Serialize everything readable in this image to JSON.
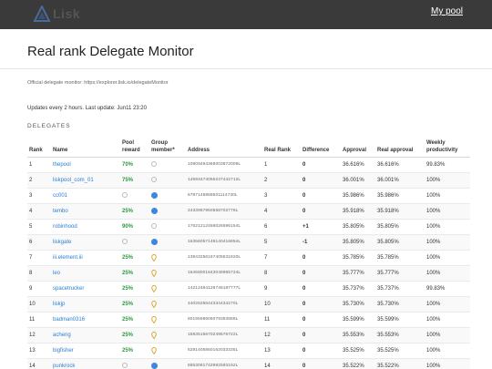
{
  "header": {
    "logo_text": "Lisk",
    "nav_label": "My pool"
  },
  "page": {
    "title": "Real rank Delegate Monitor",
    "monitor_note": "Official delegate monitor: https://explorer.lisk.io/delegateMonitor",
    "update_note": "Updates every 2 hours. Last update: Jun11 23:20",
    "section_title": "DELEGATES"
  },
  "table": {
    "headers": {
      "rank": "Rank",
      "name": "Name",
      "pool_reward": "Pool reward",
      "group_member": "Group member*",
      "address": "Address",
      "real_rank": "Real Rank",
      "difference": "Difference",
      "approval": "Approval",
      "real_approval": "Real approval",
      "weekly_productivity": "Weekly productivity"
    },
    "rows": [
      {
        "rank": "1",
        "name": "thepool",
        "pool": "70%",
        "member": "circle",
        "address": "10809494368003872009L",
        "real_rank": "1",
        "diff": "0",
        "approval": "36.616%",
        "real_approval": "36.616%",
        "productivity": "99.83%"
      },
      {
        "rank": "2",
        "name": "liskpool_com_01",
        "pool": "75%",
        "member": "circle",
        "address": "14593474056247442712L",
        "real_rank": "2",
        "diff": "0",
        "approval": "36.001%",
        "real_approval": "36.001%",
        "productivity": "100%"
      },
      {
        "rank": "3",
        "name": "cc001",
        "pool": "",
        "member": "dot",
        "address": "6787145958501114730L",
        "real_rank": "3",
        "diff": "0",
        "approval": "35.986%",
        "real_approval": "35.986%",
        "productivity": "100%"
      },
      {
        "rank": "4",
        "name": "tembo",
        "pool": "25%",
        "member": "dot",
        "address": "2433957950558702776L",
        "real_rank": "4",
        "diff": "0",
        "approval": "35.918%",
        "real_approval": "35.918%",
        "productivity": "100%"
      },
      {
        "rank": "5",
        "name": "robinhood",
        "pool": "90%",
        "member": "circle",
        "address": "17621212458026596154L",
        "real_rank": "6",
        "diff": "+1",
        "approval": "35.805%",
        "real_approval": "35.805%",
        "productivity": "100%"
      },
      {
        "rank": "6",
        "name": "liskgate",
        "pool": "",
        "member": "dot",
        "address": "16356057149140416854L",
        "real_rank": "5",
        "diff": "-1",
        "approval": "35.805%",
        "real_approval": "35.805%",
        "productivity": "100%"
      },
      {
        "rank": "7",
        "name": "iii.element.iii",
        "pool": "25%",
        "member": "pin",
        "address": "13943256167405531820L",
        "real_rank": "7",
        "diff": "0",
        "approval": "35.785%",
        "real_approval": "35.785%",
        "productivity": "100%"
      },
      {
        "rank": "8",
        "name": "leo",
        "pool": "25%",
        "member": "pin",
        "address": "15458001843048965724L",
        "real_rank": "8",
        "diff": "0",
        "approval": "35.777%",
        "real_approval": "35.777%",
        "productivity": "100%"
      },
      {
        "rank": "9",
        "name": "spacetrucker",
        "pool": "25%",
        "member": "pin",
        "address": "14212484126746187777L",
        "real_rank": "9",
        "diff": "0",
        "approval": "35.737%",
        "real_approval": "35.737%",
        "productivity": "99.83%"
      },
      {
        "rank": "10",
        "name": "liskjp",
        "pool": "25%",
        "member": "pin",
        "address": "4402625644334434270L",
        "real_rank": "10",
        "diff": "0",
        "approval": "35.730%",
        "real_approval": "35.730%",
        "productivity": "100%"
      },
      {
        "rank": "11",
        "name": "badman0316",
        "pool": "25%",
        "member": "pin",
        "address": "8019598606079393888L",
        "real_rank": "11",
        "diff": "0",
        "approval": "35.599%",
        "real_approval": "35.599%",
        "productivity": "100%"
      },
      {
        "rank": "12",
        "name": "acheng",
        "pool": "25%",
        "member": "pin",
        "address": "1583515670249576722L",
        "real_rank": "12",
        "diff": "0",
        "approval": "35.553%",
        "real_approval": "35.553%",
        "productivity": "100%"
      },
      {
        "rank": "13",
        "name": "bigfisher",
        "pool": "25%",
        "member": "pin",
        "address": "6281405850162033335L",
        "real_rank": "13",
        "diff": "0",
        "approval": "35.525%",
        "real_approval": "35.525%",
        "productivity": "100%"
      },
      {
        "rank": "14",
        "name": "punkrock",
        "pool": "",
        "member": "dot",
        "address": "6853061742992593192L",
        "real_rank": "14",
        "diff": "0",
        "approval": "35.522%",
        "real_approval": "35.522%",
        "productivity": "100%"
      }
    ]
  },
  "colors": {
    "topbar": "#3a3a3a",
    "link": "#2b7fd0",
    "pool_green": "#2e9a3c",
    "member_blue": "#3e86e0",
    "pin_gold": "#d4a02a"
  }
}
